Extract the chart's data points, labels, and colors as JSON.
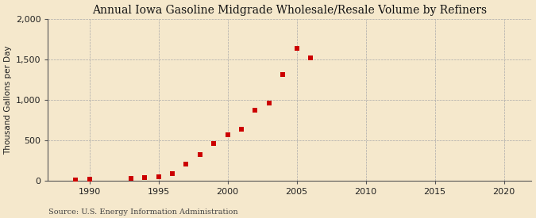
{
  "title": "Annual Iowa Gasoline Midgrade Wholesale/Resale Volume by Refiners",
  "ylabel": "Thousand Gallons per Day",
  "source": "Source: U.S. Energy Information Administration",
  "background_color": "#f5e8cc",
  "plot_bg_color": "#f5e8cc",
  "data": [
    [
      1989,
      10
    ],
    [
      1990,
      25
    ],
    [
      1993,
      30
    ],
    [
      1994,
      40
    ],
    [
      1995,
      50
    ],
    [
      1996,
      90
    ],
    [
      1997,
      210
    ],
    [
      1998,
      330
    ],
    [
      1999,
      460
    ],
    [
      2000,
      570
    ],
    [
      2001,
      640
    ],
    [
      2002,
      870
    ],
    [
      2003,
      960
    ],
    [
      2004,
      1310
    ],
    [
      2005,
      1630
    ],
    [
      2006,
      1520
    ]
  ],
  "xlim": [
    1987,
    2022
  ],
  "ylim": [
    0,
    2000
  ],
  "xticks": [
    1990,
    1995,
    2000,
    2005,
    2010,
    2015,
    2020
  ],
  "yticks": [
    0,
    500,
    1000,
    1500,
    2000
  ],
  "ytick_labels": [
    "0",
    "500",
    "1,000",
    "1,500",
    "2,000"
  ],
  "marker_color": "#cc0000",
  "marker_size": 5,
  "grid_color": "#aaaaaa",
  "title_fontsize": 10,
  "label_fontsize": 7.5,
  "tick_fontsize": 8,
  "source_fontsize": 7
}
